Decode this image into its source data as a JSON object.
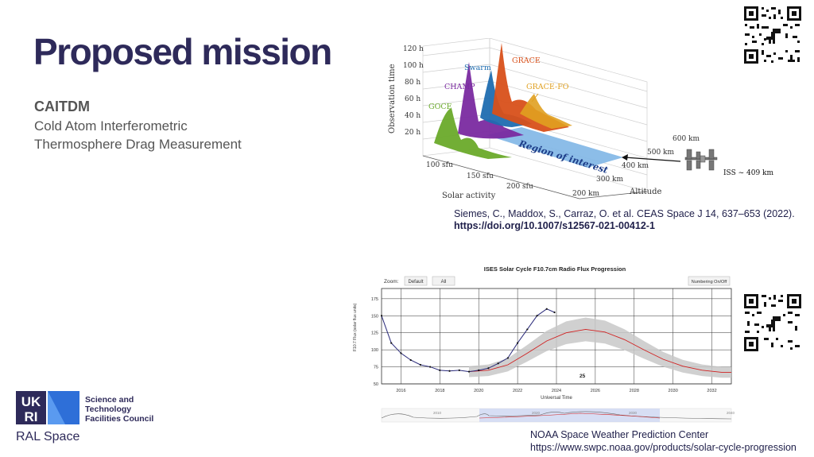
{
  "slide": {
    "title": "Proposed mission",
    "subtitle": "CAITDM",
    "description_line1": "Cold Atom Interferometric",
    "description_line2": "Thermosphere Drag Measurement"
  },
  "figure1": {
    "y_axis_title": "Observation time",
    "y_ticks": [
      "120 h",
      "100 h",
      "80 h",
      "60 h",
      "40 h",
      "20 h"
    ],
    "solar_ticks": [
      "100 sfu",
      "150 sfu",
      "200 sfu"
    ],
    "solar_axis_title": "Solar activity",
    "altitude_ticks": [
      "600 km",
      "500 km",
      "400 km",
      "300 km",
      "200 km"
    ],
    "altitude_axis_title": "Altitude",
    "region_label": "Region of interest",
    "iss_label": "ISS ~ 409 km",
    "missions": [
      {
        "name": "GOCE",
        "color": "#6aaa2a"
      },
      {
        "name": "CHAMP",
        "color": "#7a2aa0"
      },
      {
        "name": "Swarm",
        "color": "#1f6db0"
      },
      {
        "name": "GRACE",
        "color": "#d8501a"
      },
      {
        "name": "GRACE-FO",
        "color": "#e0a020"
      }
    ]
  },
  "citation1": {
    "line1": "Siemes, C., Maddox, S., Carraz, O. et al. CEAS Space J 14, 637–653 (2022).",
    "doi": "https://doi.org/10.1007/s12567-021-00412-1"
  },
  "figure2": {
    "title": "ISES Solar Cycle F10.7cm Radio Flux Progression",
    "zoom_label": "Zoom:",
    "zoom_default": "Default",
    "zoom_all": "All",
    "numbering_button": "Numbering On/Off",
    "menu_icon": "≡",
    "ylabel": "F10.7 Flux (solar flux units)",
    "xlabel": "Universal Time",
    "y_ticks": [
      "175",
      "150",
      "125",
      "100",
      "75",
      "50"
    ],
    "x_ticks": [
      "2016",
      "2018",
      "2020",
      "2022",
      "2024",
      "2026",
      "2028",
      "2030",
      "2032"
    ],
    "cycle_label": "25",
    "nav_ticks": [
      "2010",
      "2020",
      "2030",
      "2040"
    ],
    "colors": {
      "observed": "#2a2a7a",
      "predicted": "#d02020",
      "band": "#c8c8c8"
    }
  },
  "chart_data": {
    "type": "line",
    "title": "ISES Solar Cycle F10.7cm Radio Flux Progression",
    "xlabel": "Universal Time",
    "ylabel": "F10.7 Flux (solar flux units)",
    "xlim": [
      2015,
      2033
    ],
    "ylim": [
      50,
      190
    ],
    "series": [
      {
        "x": [
          2015.0,
          2015.5,
          2016.0,
          2016.5,
          2017.0,
          2017.5,
          2018.0,
          2018.5,
          2019.0,
          2019.5,
          2020.0,
          2020.5,
          2021.0,
          2021.5,
          2022.0,
          2022.5,
          2023.0,
          2023.5,
          2023.9
        ],
        "values": [
          150,
          110,
          95,
          85,
          78,
          75,
          70,
          69,
          70,
          68,
          70,
          73,
          80,
          88,
          110,
          130,
          150,
          160,
          155
        ]
      },
      {
        "x": [
          2019.5,
          2020.5,
          2021.5,
          2022.5,
          2023.5,
          2024.5,
          2025.5,
          2026.5,
          2027.5,
          2028.5,
          2029.5,
          2030.5,
          2031.5,
          2032.5,
          2033.0
        ],
        "values": [
          68,
          70,
          78,
          95,
          113,
          125,
          130,
          126,
          115,
          100,
          86,
          76,
          70,
          67,
          67
        ]
      }
    ]
  },
  "citation2": {
    "line1": "NOAA Space Weather Prediction Center",
    "line2": "https://www.swpc.noaa.gov/products/solar-cycle-progression"
  },
  "logo": {
    "org_line1": "Science and",
    "org_line2": "Technology",
    "org_line3": "Facilities Council",
    "org_name": "RAL Space"
  }
}
